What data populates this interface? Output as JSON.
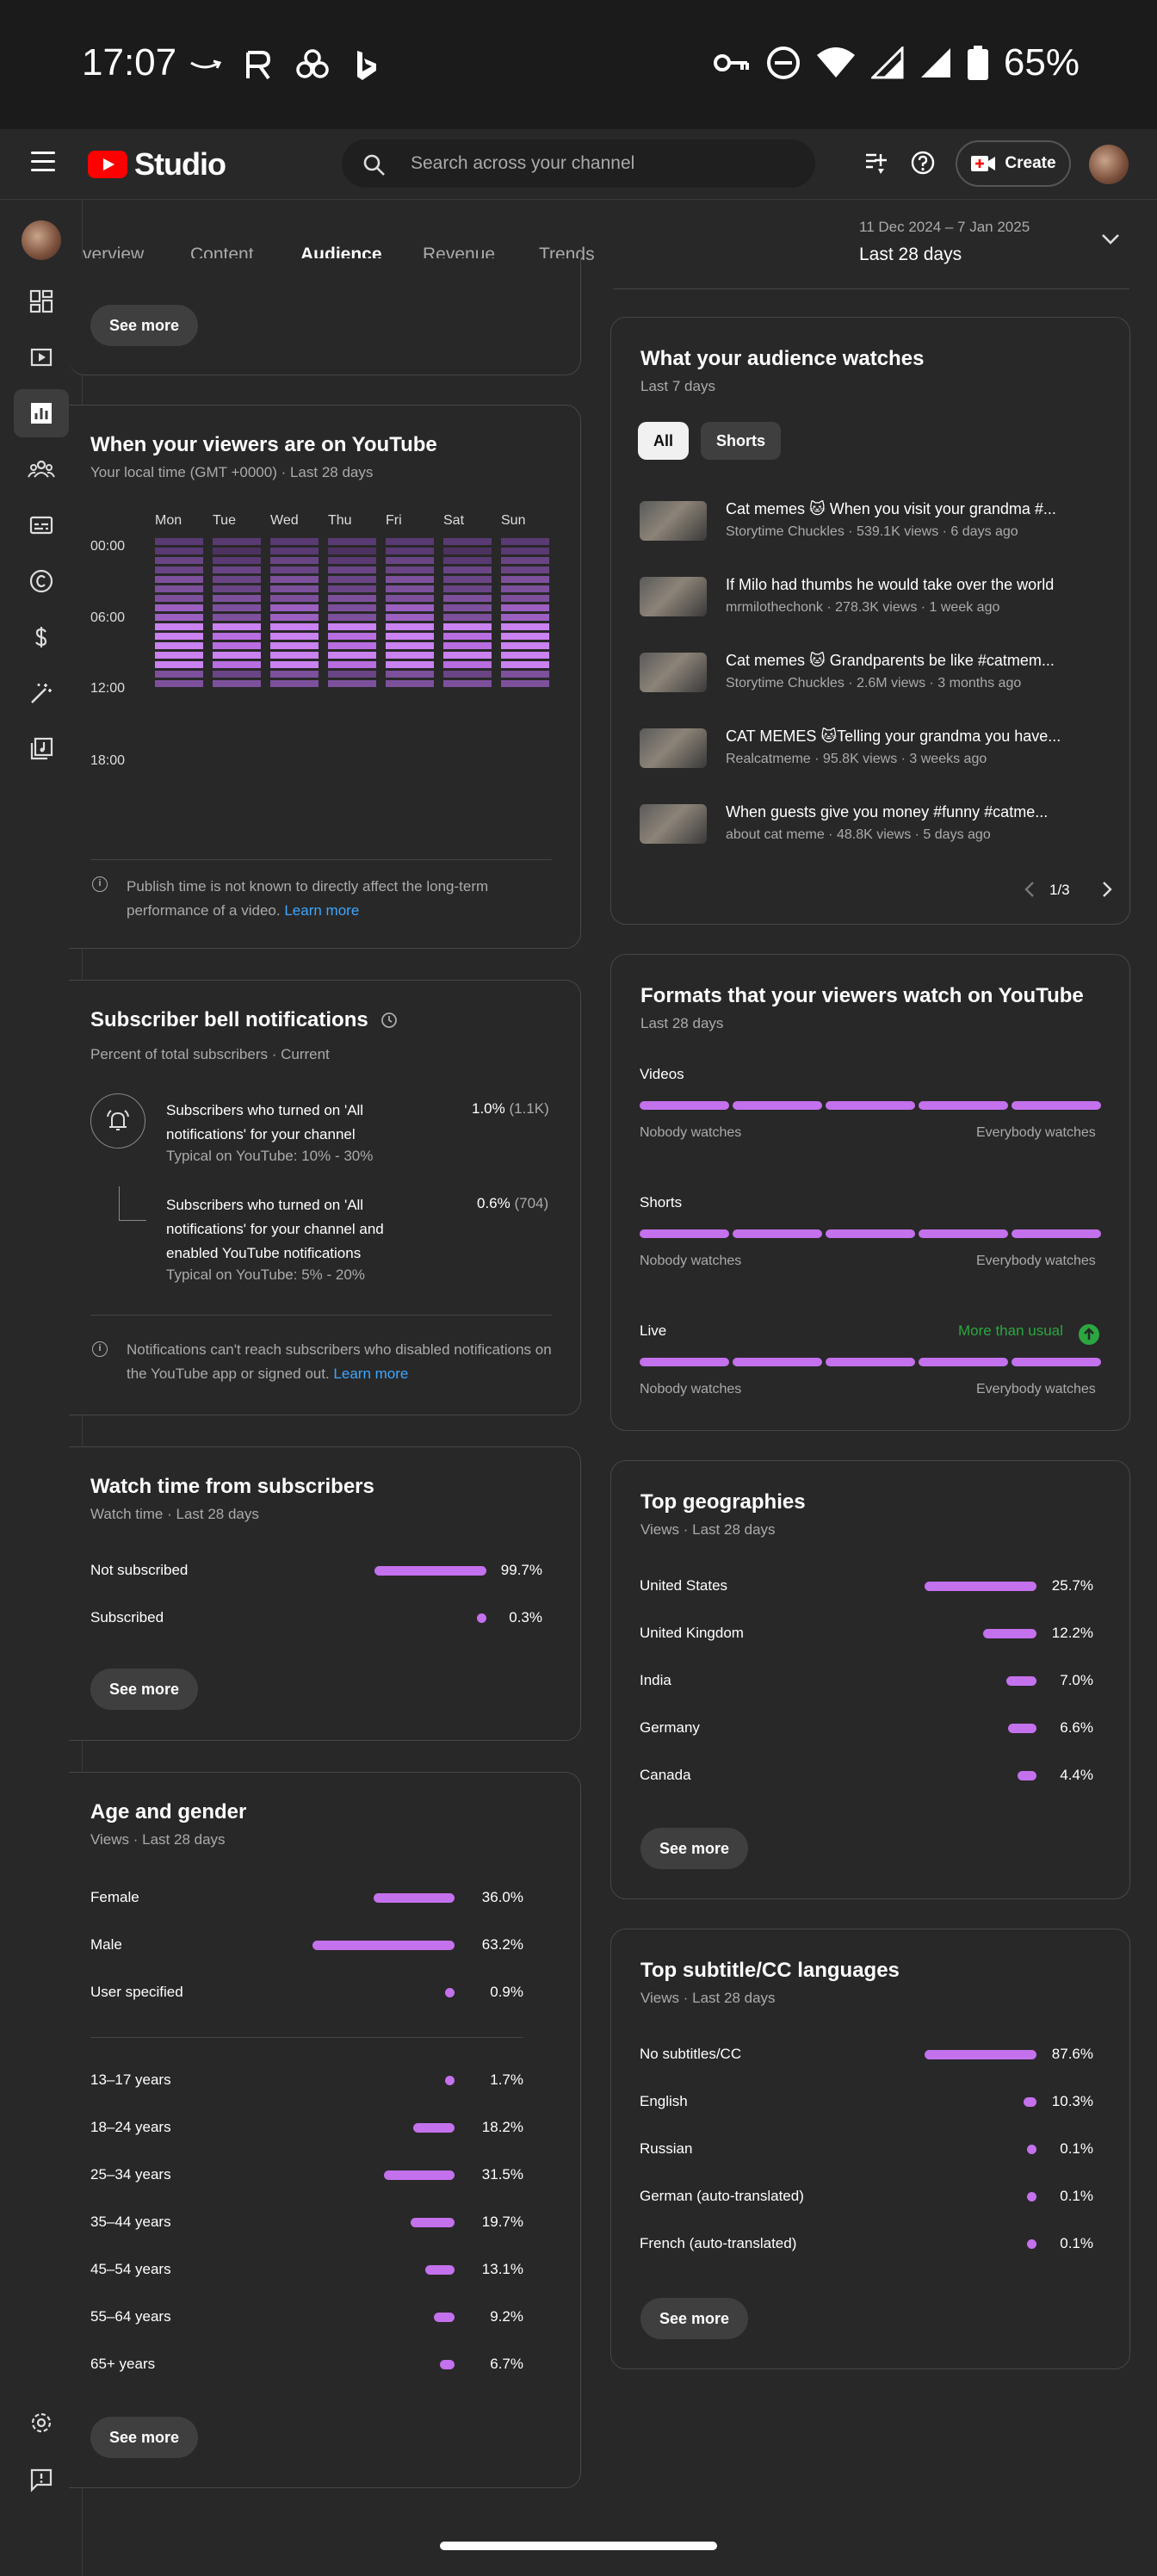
{
  "status_bar": {
    "time": "17:07",
    "battery": "65%"
  },
  "app": {
    "brand": "Studio",
    "search_placeholder": "Search across your channel",
    "create_label": "Create"
  },
  "tabs": {
    "items": [
      "verview",
      "Content",
      "Audience",
      "Revenue",
      "Trends"
    ],
    "active_index": 2
  },
  "date_range": {
    "range": "11 Dec 2024 – 7 Jan 2025",
    "label": "Last 28 days"
  },
  "left": {
    "top_see_more": "See more",
    "when_viewers": {
      "title": "When your viewers are on YouTube",
      "subtitle": "Your local time (GMT +0000) · Last 28 days",
      "days": [
        "Mon",
        "Tue",
        "Wed",
        "Thu",
        "Fri",
        "Sat",
        "Sun"
      ],
      "hours": [
        "00:00",
        "06:00",
        "12:00",
        "18:00"
      ],
      "note": "Publish time is not known to directly affect the long-term performance of a video.",
      "learn_more": "Learn more"
    },
    "bell": {
      "title": "Subscriber bell notifications",
      "subtitle": "Percent of total subscribers · Current",
      "rows": [
        {
          "text": "Subscribers who turned on 'All notifications' for your channel",
          "typical": "Typical on YouTube: 10% - 30%",
          "value": "1.0%",
          "count": "(1.1K)"
        },
        {
          "text": "Subscribers who turned on 'All notifications' for your channel and enabled YouTube notifications",
          "typical": "Typical on YouTube: 5% - 20%",
          "value": "0.6%",
          "count": "(704)"
        }
      ],
      "note": "Notifications can't reach subscribers who disabled notifications on the YouTube app or signed out.",
      "learn_more": "Learn more"
    },
    "watch_subs": {
      "title": "Watch time from subscribers",
      "subtitle": "Watch time · Last 28 days",
      "rows": [
        {
          "label": "Not subscribed",
          "value": "99.7%",
          "pct": 99.7
        },
        {
          "label": "Subscribed",
          "value": "0.3%",
          "pct": 0.3
        }
      ],
      "see_more": "See more"
    },
    "age_gender": {
      "title": "Age and gender",
      "subtitle": "Views · Last 28 days",
      "gender": [
        {
          "label": "Female",
          "value": "36.0%",
          "pct": 36.0
        },
        {
          "label": "Male",
          "value": "63.2%",
          "pct": 63.2
        },
        {
          "label": "User specified",
          "value": "0.9%",
          "pct": 0.9
        }
      ],
      "ages": [
        {
          "label": "13–17 years",
          "value": "1.7%",
          "pct": 1.7
        },
        {
          "label": "18–24 years",
          "value": "18.2%",
          "pct": 18.2
        },
        {
          "label": "25–34 years",
          "value": "31.5%",
          "pct": 31.5
        },
        {
          "label": "35–44 years",
          "value": "19.7%",
          "pct": 19.7
        },
        {
          "label": "45–54 years",
          "value": "13.1%",
          "pct": 13.1
        },
        {
          "label": "55–64 years",
          "value": "9.2%",
          "pct": 9.2
        },
        {
          "label": "65+ years",
          "value": "6.7%",
          "pct": 6.7
        }
      ],
      "see_more": "See more"
    }
  },
  "right": {
    "audience_watches": {
      "title": "What your audience watches",
      "subtitle": "Last 7 days",
      "filters": [
        "All",
        "Shorts"
      ],
      "videos": [
        {
          "title": "Cat memes 🐱 When you visit your grandma #...",
          "meta": "Storytime Chuckles · 539.1K views · 6 days ago"
        },
        {
          "title": "If Milo had thumbs he would take over the world",
          "meta": "mrmilothechonk · 278.3K views · 1 week ago"
        },
        {
          "title": "Cat memes 🐱 Grandparents be like #catmem...",
          "meta": "Storytime Chuckles · 2.6M views · 3 months ago"
        },
        {
          "title": "CAT MEMES 🐱Telling your grandma you have...",
          "meta": "Realcatmeme · 95.8K views · 3 weeks ago"
        },
        {
          "title": "When guests give you money #funny #catme...",
          "meta": "about cat meme · 48.8K views · 5 days ago"
        }
      ],
      "page": "1/3"
    },
    "formats": {
      "title": "Formats that your viewers watch on YouTube",
      "subtitle": "Last 28 days",
      "rows": [
        {
          "label": "Videos",
          "badge": ""
        },
        {
          "label": "Shorts",
          "badge": ""
        },
        {
          "label": "Live",
          "badge": "More than usual"
        }
      ],
      "scale_low": "Nobody watches",
      "scale_high": "Everybody watches"
    },
    "geo": {
      "title": "Top geographies",
      "subtitle": "Views · Last 28 days",
      "rows": [
        {
          "label": "United States",
          "value": "25.7%",
          "pct": 25.7
        },
        {
          "label": "United Kingdom",
          "value": "12.2%",
          "pct": 12.2
        },
        {
          "label": "India",
          "value": "7.0%",
          "pct": 7.0
        },
        {
          "label": "Germany",
          "value": "6.6%",
          "pct": 6.6
        },
        {
          "label": "Canada",
          "value": "4.4%",
          "pct": 4.4
        }
      ],
      "see_more": "See more"
    },
    "subtitles": {
      "title": "Top subtitle/CC languages",
      "subtitle": "Views · Last 28 days",
      "rows": [
        {
          "label": "No subtitles/CC",
          "value": "87.6%",
          "pct": 87.6
        },
        {
          "label": "English",
          "value": "10.3%",
          "pct": 10.3
        },
        {
          "label": "Russian",
          "value": "0.1%",
          "pct": 0.1
        },
        {
          "label": "German (auto-translated)",
          "value": "0.1%",
          "pct": 0.1
        },
        {
          "label": "French (auto-translated)",
          "value": "0.1%",
          "pct": 0.1
        }
      ],
      "see_more": "See more"
    }
  },
  "colors": {
    "accent": "#c471ed",
    "link": "#3ea6ff",
    "positive": "#2ba640",
    "brand_red": "#ff0000"
  }
}
